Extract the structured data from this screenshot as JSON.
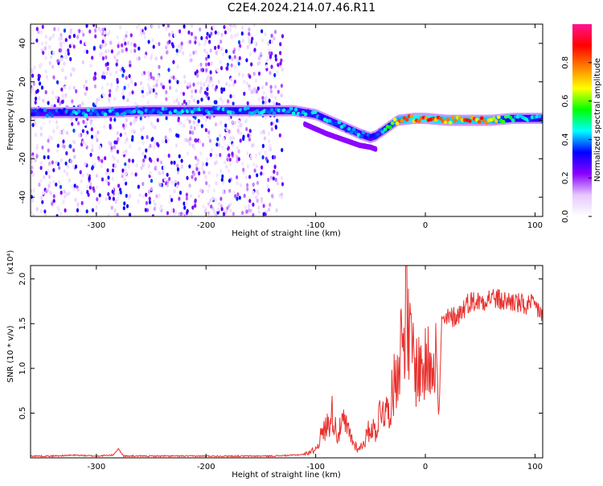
{
  "title": "C2E4.2024.214.07.46.R11",
  "chart_data": [
    {
      "type": "heatmap",
      "xlabel": "Height of straight line (km)",
      "ylabel": "Frequency (Hz)",
      "xlim": [
        -360,
        107
      ],
      "ylim": [
        -50,
        50
      ],
      "x_ticks": [
        -300,
        -200,
        -100,
        0,
        100
      ],
      "y_ticks": [
        -40,
        -20,
        0,
        20,
        40
      ],
      "colorbar": {
        "label": "Normalized spectral amplitude",
        "range": [
          0.0,
          1.0
        ],
        "ticks": [
          "0.0",
          "0.2",
          "0.4",
          "0.6",
          "0.8"
        ],
        "colors": [
          "#ffffff",
          "#e6c8ff",
          "#8b00ff",
          "#0000ff",
          "#00ffff",
          "#00ff00",
          "#ffff00",
          "#ff7f00",
          "#ff0000",
          "#ff1493"
        ]
      },
      "ridge": {
        "x": [
          -360,
          -300,
          -250,
          -200,
          -150,
          -120,
          -100,
          -80,
          -60,
          -50,
          -45,
          -40,
          -30,
          -25,
          -10,
          0,
          20,
          60,
          80,
          107
        ],
        "y": [
          4,
          4,
          5,
          5,
          5,
          5,
          3,
          -2,
          -7,
          -9,
          -8,
          -6,
          -2,
          0,
          1,
          1,
          0,
          0,
          1,
          1
        ]
      },
      "ridge_amplitude": {
        "x": [
          -360,
          -300,
          -250,
          -200,
          -150,
          -120,
          -100,
          -80,
          -60,
          -50,
          -40,
          -25,
          -10,
          0,
          20,
          60,
          80,
          107
        ],
        "value": [
          0.4,
          0.45,
          0.45,
          0.45,
          0.45,
          0.45,
          0.45,
          0.45,
          0.45,
          0.4,
          0.4,
          0.8,
          0.9,
          0.9,
          0.85,
          0.85,
          0.5,
          0.45
        ]
      },
      "secondary_ridge": {
        "x": [
          -110,
          -90,
          -70,
          -60,
          -50,
          -45
        ],
        "y": [
          -2,
          -7,
          -11,
          -13,
          -14,
          -15
        ]
      },
      "noise_extent_x": [
        -360,
        -130
      ],
      "grid": false
    },
    {
      "type": "line",
      "xlabel": "Height of straight line (km)",
      "ylabel": "SNR (10 * v/v)",
      "y_multiplier": "(x10⁴)",
      "xlim": [
        -360,
        107
      ],
      "ylim": [
        0,
        2.15
      ],
      "x_ticks": [
        -300,
        -200,
        -100,
        0,
        100
      ],
      "y_ticks": [
        0.5,
        1.0,
        1.5,
        2.0
      ],
      "color": "#e8312e",
      "series": [
        {
          "x": [
            -360,
            -340,
            -320,
            -300,
            -285,
            -280,
            -275,
            -260,
            -240,
            -220,
            -200,
            -180,
            -160,
            -140,
            -120,
            -110,
            -100,
            -95,
            -90,
            -85,
            -80,
            -75,
            -70,
            -65,
            -60,
            -55,
            -50,
            -45,
            -40,
            -35,
            -30,
            -25,
            -20,
            -17,
            -15,
            -12,
            -10,
            -5,
            0,
            5,
            10,
            12,
            15,
            20,
            30,
            40,
            50,
            60,
            70,
            80,
            90,
            100,
            107
          ],
          "y": [
            0.02,
            0.02,
            0.03,
            0.02,
            0.03,
            0.1,
            0.02,
            0.02,
            0.02,
            0.02,
            0.02,
            0.02,
            0.02,
            0.02,
            0.03,
            0.04,
            0.1,
            0.25,
            0.35,
            0.5,
            0.25,
            0.4,
            0.3,
            0.15,
            0.1,
            0.2,
            0.35,
            0.3,
            0.6,
            0.5,
            0.7,
            1.1,
            1.4,
            1.9,
            1.2,
            1.3,
            1.0,
            1.0,
            1.0,
            1.15,
            1.3,
            0.4,
            1.5,
            1.55,
            1.6,
            1.75,
            1.75,
            1.8,
            1.75,
            1.75,
            1.7,
            1.7,
            1.6
          ]
        }
      ],
      "grid": false
    }
  ]
}
